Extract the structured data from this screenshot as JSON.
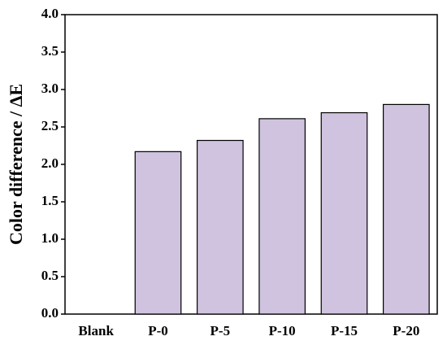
{
  "chart_data": {
    "type": "bar",
    "y_label": "Color difference / ΔE",
    "categories": [
      "Blank",
      "P-0",
      "P-5",
      "P-10",
      "P-15",
      "P-20"
    ],
    "values": [
      0,
      2.17,
      2.32,
      2.61,
      2.69,
      2.8
    ],
    "color": "#cfc3df",
    "ylim": [
      0,
      4
    ],
    "yticks": [
      {
        "value": 0,
        "label": "0.0"
      },
      0.5,
      {
        "value": 1,
        "label": "1.0"
      },
      1.5,
      {
        "value": 2,
        "label": "2.0"
      },
      2.5,
      {
        "value": 3,
        "label": "3.0"
      },
      3.5,
      {
        "value": 4,
        "label": "4.0"
      }
    ],
    "grid": false
  }
}
